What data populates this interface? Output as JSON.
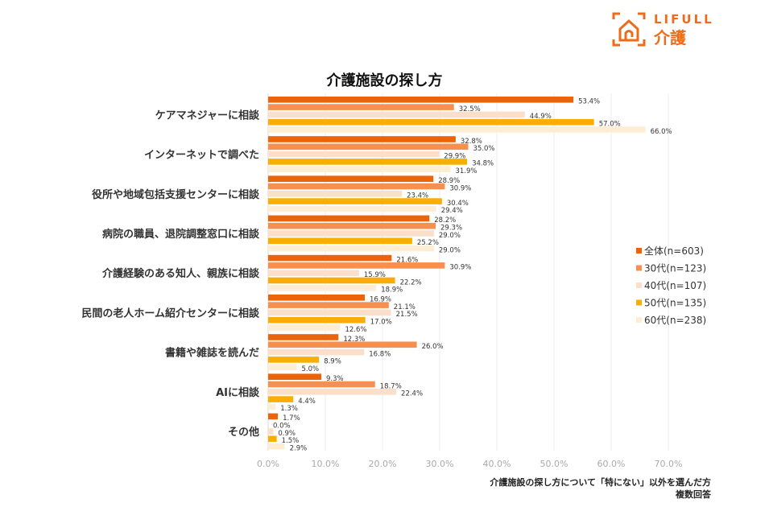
{
  "brand": {
    "logo_text_en": "LIFULL",
    "logo_text_jp": "介護",
    "brand_color": "#ED6C1A"
  },
  "chart_data": {
    "type": "bar",
    "orientation": "horizontal",
    "title": "介護施設の探し方",
    "xlabel": "",
    "ylabel": "",
    "xlim": [
      0,
      70
    ],
    "x_ticks": [
      0,
      10,
      20,
      30,
      40,
      50,
      60,
      70
    ],
    "x_tick_labels": [
      "0.0%",
      "10.0%",
      "20.0%",
      "30.0%",
      "40.0%",
      "50.0%",
      "60.0%",
      "70.0%"
    ],
    "grid": true,
    "legend_position": "right",
    "value_suffix": "%",
    "categories": [
      "ケアマネジャーに相談",
      "インターネットで調べた",
      "役所や地域包括支援センターに相談",
      "病院の職員、退院調整窓口に相談",
      "介護経験のある知人、親族に相談",
      "民間の老人ホーム紹介センターに相談",
      "書籍や雑誌を読んだ",
      "AIに相談",
      "その他"
    ],
    "series": [
      {
        "name": "全体(n=603)",
        "color": "#EB6409",
        "values": [
          53.4,
          32.8,
          28.9,
          28.2,
          21.6,
          16.9,
          12.3,
          9.3,
          1.7
        ]
      },
      {
        "name": "30代(n=123)",
        "color": "#F7904E",
        "values": [
          32.5,
          35.0,
          30.9,
          29.3,
          30.9,
          21.1,
          26.0,
          18.7,
          0.0
        ]
      },
      {
        "name": "40代(n=107)",
        "color": "#FCDFCB",
        "values": [
          44.9,
          29.9,
          23.4,
          29.0,
          15.9,
          21.5,
          16.8,
          22.4,
          0.9
        ]
      },
      {
        "name": "50代(n=135)",
        "color": "#FAAD07",
        "values": [
          57.0,
          34.8,
          30.4,
          25.2,
          22.2,
          17.0,
          8.9,
          4.4,
          1.5
        ]
      },
      {
        "name": "60代(n=238)",
        "color": "#FDEDD3",
        "values": [
          66.0,
          31.9,
          29.4,
          29.0,
          18.9,
          12.6,
          5.0,
          1.3,
          2.9
        ]
      }
    ],
    "footnote": [
      "介護施設の探し方について「特にない」以外を選んだ方",
      "複数回答"
    ]
  }
}
